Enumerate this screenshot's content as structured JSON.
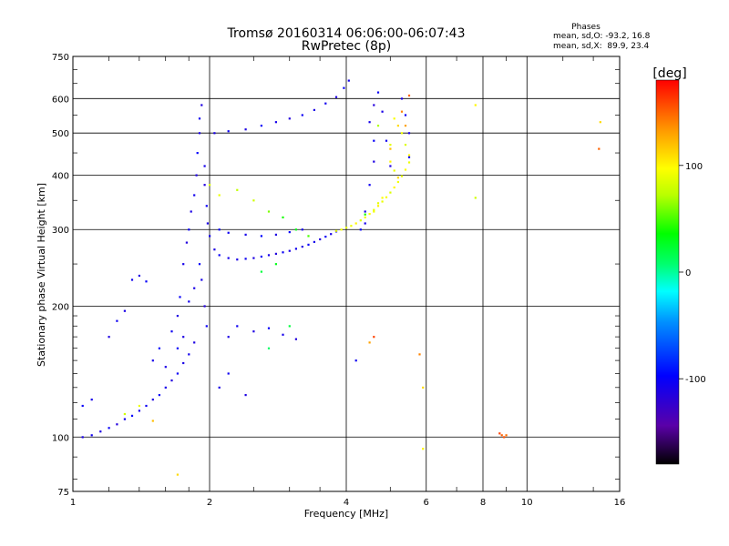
{
  "header": {
    "title": "Tromsø 20160314 06:06:00-06:07:43",
    "subtitle": "RwPretec (8p)"
  },
  "stats": {
    "heading": "Phases",
    "line_o": "mean, sd,O: -93.2, 16.8",
    "line_x": "mean, sd,X:  89.9, 23.4"
  },
  "colorbar": {
    "label": "[deg]",
    "ticks": [
      {
        "value": 100,
        "label": "100"
      },
      {
        "value": 0,
        "label": "0"
      },
      {
        "value": -100,
        "label": "-100"
      }
    ],
    "range": [
      -180,
      180
    ]
  },
  "chart_data": {
    "type": "scatter",
    "xscale": "log",
    "yscale": "log",
    "xlabel": "Frequency [MHz]",
    "ylabel": "Stationary phase Virtual Height [km]",
    "xlim": [
      1,
      16
    ],
    "ylim": [
      75,
      750
    ],
    "grid": true,
    "xticks": [
      {
        "value": 1,
        "label": "1"
      },
      {
        "value": 2,
        "label": "2"
      },
      {
        "value": 4,
        "label": "4"
      },
      {
        "value": 6,
        "label": "6"
      },
      {
        "value": 8,
        "label": "8"
      },
      {
        "value": 10,
        "label": "10"
      },
      {
        "value": 16,
        "label": "16"
      }
    ],
    "xgrid": [
      2,
      4,
      6,
      8,
      10
    ],
    "yticks": [
      {
        "value": 75,
        "label": "75"
      },
      {
        "value": 100,
        "label": "100"
      },
      {
        "value": 200,
        "label": "200"
      },
      {
        "value": 300,
        "label": "300"
      },
      {
        "value": 400,
        "label": "400"
      },
      {
        "value": 500,
        "label": "500"
      },
      {
        "value": 600,
        "label": "600"
      },
      {
        "value": 750,
        "label": "750"
      }
    ],
    "ygrid": [
      100,
      200,
      300,
      400,
      500,
      600
    ],
    "series": [
      {
        "points": [
          [
            1.05,
            100,
            -110
          ],
          [
            1.1,
            101,
            -105
          ],
          [
            1.15,
            103,
            -112
          ],
          [
            1.2,
            105,
            -100
          ],
          [
            1.25,
            107,
            -115
          ],
          [
            1.3,
            110,
            -108
          ],
          [
            1.35,
            112,
            -98
          ],
          [
            1.4,
            115,
            -110
          ],
          [
            1.45,
            118,
            -104
          ],
          [
            1.5,
            122,
            -112
          ],
          [
            1.55,
            125,
            -100
          ],
          [
            1.6,
            130,
            -108
          ],
          [
            1.65,
            135,
            -115
          ],
          [
            1.7,
            140,
            -102
          ],
          [
            1.75,
            148,
            -110
          ],
          [
            1.8,
            155,
            -106
          ],
          [
            1.85,
            165,
            -112
          ],
          [
            1.05,
            118,
            -100
          ],
          [
            1.1,
            122,
            -108
          ],
          [
            1.2,
            170,
            -112
          ],
          [
            1.25,
            185,
            -104
          ],
          [
            1.3,
            195,
            -110
          ],
          [
            1.35,
            230,
            -106
          ],
          [
            1.4,
            235,
            -112
          ],
          [
            1.45,
            228,
            -100
          ],
          [
            1.5,
            150,
            -108
          ],
          [
            1.55,
            160,
            -95
          ],
          [
            1.6,
            145,
            -110
          ],
          [
            1.65,
            175,
            -104
          ],
          [
            1.7,
            190,
            -112
          ],
          [
            1.72,
            210,
            -100
          ],
          [
            1.75,
            250,
            -108
          ],
          [
            1.78,
            280,
            -115
          ],
          [
            1.8,
            300,
            -102
          ],
          [
            1.82,
            330,
            -110
          ],
          [
            1.85,
            360,
            -106
          ],
          [
            1.87,
            400,
            -112
          ],
          [
            1.88,
            450,
            -98
          ],
          [
            1.9,
            500,
            -110
          ],
          [
            1.9,
            540,
            -104
          ],
          [
            1.92,
            580,
            -112
          ],
          [
            1.9,
            250,
            -100
          ],
          [
            1.92,
            230,
            -108
          ],
          [
            1.95,
            200,
            -115
          ],
          [
            1.97,
            180,
            -102
          ],
          [
            1.85,
            220,
            -110
          ],
          [
            1.8,
            205,
            -106
          ],
          [
            1.75,
            170,
            -112
          ],
          [
            1.7,
            160,
            -100
          ],
          [
            1.95,
            420,
            -108
          ],
          [
            1.95,
            380,
            -115
          ],
          [
            1.97,
            340,
            -102
          ],
          [
            1.98,
            310,
            -110
          ],
          [
            2.0,
            290,
            -106
          ],
          [
            2.05,
            270,
            -112
          ],
          [
            2.1,
            262,
            -100
          ],
          [
            2.2,
            258,
            -108
          ],
          [
            2.3,
            256,
            -110
          ],
          [
            2.4,
            257,
            -104
          ],
          [
            2.5,
            258,
            -112
          ],
          [
            2.6,
            260,
            -100
          ],
          [
            2.7,
            262,
            -108
          ],
          [
            2.8,
            264,
            -115
          ],
          [
            2.9,
            266,
            -102
          ],
          [
            3.0,
            268,
            -110
          ],
          [
            3.1,
            271,
            -106
          ],
          [
            3.2,
            274,
            -112
          ],
          [
            3.3,
            277,
            -100
          ],
          [
            3.4,
            281,
            -108
          ],
          [
            3.5,
            285,
            -115
          ],
          [
            3.6,
            289,
            -102
          ],
          [
            3.7,
            293,
            -110
          ],
          [
            3.8,
            297,
            -106
          ],
          [
            2.1,
            300,
            -100
          ],
          [
            2.2,
            295,
            -104
          ],
          [
            2.4,
            292,
            -108
          ],
          [
            2.6,
            290,
            -96
          ],
          [
            2.8,
            292,
            -112
          ],
          [
            3.0,
            296,
            -100
          ],
          [
            3.2,
            300,
            -106
          ],
          [
            2.05,
            500,
            -110
          ],
          [
            2.2,
            505,
            -104
          ],
          [
            2.4,
            510,
            -112
          ],
          [
            2.6,
            520,
            -100
          ],
          [
            2.8,
            530,
            -108
          ],
          [
            3.0,
            540,
            -115
          ],
          [
            3.2,
            550,
            -102
          ],
          [
            3.4,
            565,
            -110
          ],
          [
            3.6,
            585,
            -106
          ],
          [
            3.8,
            605,
            -112
          ],
          [
            3.95,
            635,
            -100
          ],
          [
            4.05,
            660,
            -108
          ],
          [
            2.2,
            170,
            -110
          ],
          [
            2.3,
            180,
            -104
          ],
          [
            2.5,
            175,
            -112
          ],
          [
            2.7,
            178,
            -100
          ],
          [
            2.9,
            172,
            -108
          ],
          [
            3.1,
            168,
            -115
          ],
          [
            2.1,
            130,
            -110
          ],
          [
            2.2,
            140,
            -104
          ],
          [
            2.4,
            125,
            -112
          ],
          [
            4.4,
            330,
            -110
          ],
          [
            4.5,
            380,
            -104
          ],
          [
            4.6,
            430,
            -112
          ],
          [
            4.6,
            480,
            -100
          ],
          [
            4.5,
            530,
            -108
          ],
          [
            4.6,
            580,
            -115
          ],
          [
            4.7,
            620,
            -102
          ],
          [
            4.8,
            560,
            -110
          ],
          [
            4.9,
            480,
            -106
          ],
          [
            5.0,
            420,
            -112
          ],
          [
            4.3,
            300,
            -100
          ],
          [
            4.4,
            310,
            -108
          ],
          [
            5.3,
            600,
            -110
          ],
          [
            5.4,
            550,
            -104
          ],
          [
            5.5,
            500,
            -112
          ],
          [
            5.5,
            440,
            -100
          ],
          [
            4.2,
            150,
            -104
          ]
        ]
      },
      {
        "points": [
          [
            3.8,
            298,
            90
          ],
          [
            3.9,
            300,
            95
          ],
          [
            4.0,
            303,
            88
          ],
          [
            4.1,
            306,
            92
          ],
          [
            4.2,
            310,
            100
          ],
          [
            4.3,
            315,
            85
          ],
          [
            4.4,
            320,
            93
          ],
          [
            4.5,
            326,
            97
          ],
          [
            4.6,
            333,
            88
          ],
          [
            4.7,
            340,
            102
          ],
          [
            4.8,
            348,
            90
          ],
          [
            4.9,
            356,
            95
          ],
          [
            5.0,
            365,
            85
          ],
          [
            5.1,
            375,
            100
          ],
          [
            5.2,
            386,
            92
          ],
          [
            5.3,
            398,
            88
          ],
          [
            5.4,
            412,
            96
          ],
          [
            5.5,
            428,
            90
          ],
          [
            5.5,
            445,
            100
          ],
          [
            5.4,
            470,
            85
          ],
          [
            5.3,
            500,
            92
          ],
          [
            5.2,
            520,
            110
          ],
          [
            5.1,
            540,
            95
          ],
          [
            5.0,
            470,
            88
          ],
          [
            5.0,
            430,
            100
          ],
          [
            5.1,
            410,
            90
          ],
          [
            5.2,
            395,
            110
          ],
          [
            4.6,
            330,
            92
          ],
          [
            4.7,
            345,
            88
          ],
          [
            4.8,
            355,
            96
          ],
          [
            4.4,
            325,
            40
          ],
          [
            5.3,
            560,
            140
          ],
          [
            5.4,
            520,
            130
          ],
          [
            5.0,
            460,
            120
          ],
          [
            5.5,
            610,
            150
          ],
          [
            4.7,
            520,
            70
          ],
          [
            2.0,
            380,
            85
          ],
          [
            2.1,
            360,
            90
          ],
          [
            2.3,
            370,
            75
          ],
          [
            2.5,
            350,
            80
          ],
          [
            2.7,
            330,
            60
          ],
          [
            2.9,
            320,
            40
          ],
          [
            3.1,
            300,
            30
          ],
          [
            3.3,
            290,
            50
          ],
          [
            2.6,
            240,
            20
          ],
          [
            2.8,
            250,
            30
          ],
          [
            3.0,
            180,
            20
          ],
          [
            2.7,
            160,
            10
          ],
          [
            1.7,
            82,
            110
          ],
          [
            8.8,
            101,
            150
          ],
          [
            8.9,
            100,
            155
          ],
          [
            9.0,
            101,
            145
          ],
          [
            8.7,
            102,
            160
          ],
          [
            5.9,
            94,
            100
          ],
          [
            14.5,
            530,
            110
          ],
          [
            14.4,
            460,
            150
          ],
          [
            7.7,
            355,
            80
          ],
          [
            7.7,
            580,
            100
          ],
          [
            4.5,
            165,
            130
          ],
          [
            4.6,
            170,
            160
          ],
          [
            5.8,
            155,
            140
          ],
          [
            5.9,
            130,
            110
          ],
          [
            1.3,
            113,
            80
          ],
          [
            1.4,
            118,
            90
          ],
          [
            1.5,
            109,
            120
          ]
        ]
      }
    ]
  }
}
